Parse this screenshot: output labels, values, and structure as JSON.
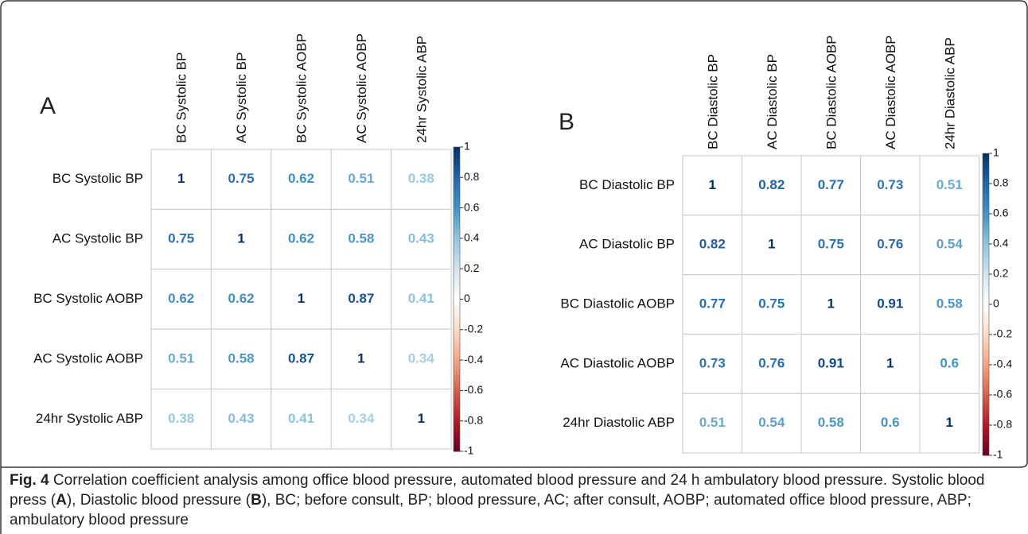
{
  "chart_data": [
    {
      "type": "corrplot",
      "panel": "A",
      "labels": [
        "BC Systolic BP",
        "AC Systolic BP",
        "BC Systolic AOBP",
        "AC Systolic AOBP",
        "24hr Systolic ABP"
      ],
      "values": [
        [
          1,
          0.75,
          0.62,
          0.51,
          0.38
        ],
        [
          0.75,
          1,
          0.62,
          0.58,
          0.43
        ],
        [
          0.62,
          0.62,
          1,
          0.87,
          0.41
        ],
        [
          0.51,
          0.58,
          0.87,
          1,
          0.34
        ],
        [
          0.38,
          0.43,
          0.41,
          0.34,
          1
        ]
      ],
      "clim": [
        -1,
        1
      ],
      "cticks": [
        1,
        0.8,
        0.6,
        0.4,
        0.2,
        0,
        -0.2,
        -0.4,
        -0.6,
        -0.8,
        -1
      ],
      "colors": [
        "#053061",
        "#2166AC",
        "#4393C3",
        "#92C5DE",
        "#D1E5F0",
        "#FFFFFF",
        "#FDDBC7",
        "#F4A582",
        "#D6604D",
        "#B2182B",
        "#67001F"
      ]
    },
    {
      "type": "corrplot",
      "panel": "B",
      "labels": [
        "BC Diastolic BP",
        "AC Diastolic BP",
        "BC Diastolic AOBP",
        "AC Diastolic AOBP",
        "24hr Diastolic ABP"
      ],
      "values": [
        [
          1,
          0.82,
          0.77,
          0.73,
          0.51
        ],
        [
          0.82,
          1,
          0.75,
          0.76,
          0.54
        ],
        [
          0.77,
          0.75,
          1,
          0.91,
          0.58
        ],
        [
          0.73,
          0.76,
          0.91,
          1,
          0.6
        ],
        [
          0.51,
          0.54,
          0.58,
          0.6,
          1
        ]
      ],
      "clim": [
        -1,
        1
      ],
      "cticks": [
        1,
        0.8,
        0.6,
        0.4,
        0.2,
        0,
        -0.2,
        -0.4,
        -0.6,
        -0.8,
        -1
      ],
      "colors": [
        "#053061",
        "#2166AC",
        "#4393C3",
        "#92C5DE",
        "#D1E5F0",
        "#FFFFFF",
        "#FDDBC7",
        "#F4A582",
        "#D6604D",
        "#B2182B",
        "#67001F"
      ]
    }
  ],
  "caption": {
    "segments": [
      {
        "text": "Fig. 4",
        "bold": true
      },
      {
        "text": " Correlation coefficient analysis among office blood pressure, automated blood pressure and 24 h ambulatory blood pressure. Systolic blood press (",
        "bold": false
      },
      {
        "text": "A",
        "bold": true
      },
      {
        "text": "), Diastolic blood pressure (",
        "bold": false
      },
      {
        "text": "B",
        "bold": true
      },
      {
        "text": "), BC; before consult, BP; blood pressure, AC; after consult, AOBP; automated office blood pressure, ABP; ambulatory blood pressure",
        "bold": false
      }
    ]
  }
}
